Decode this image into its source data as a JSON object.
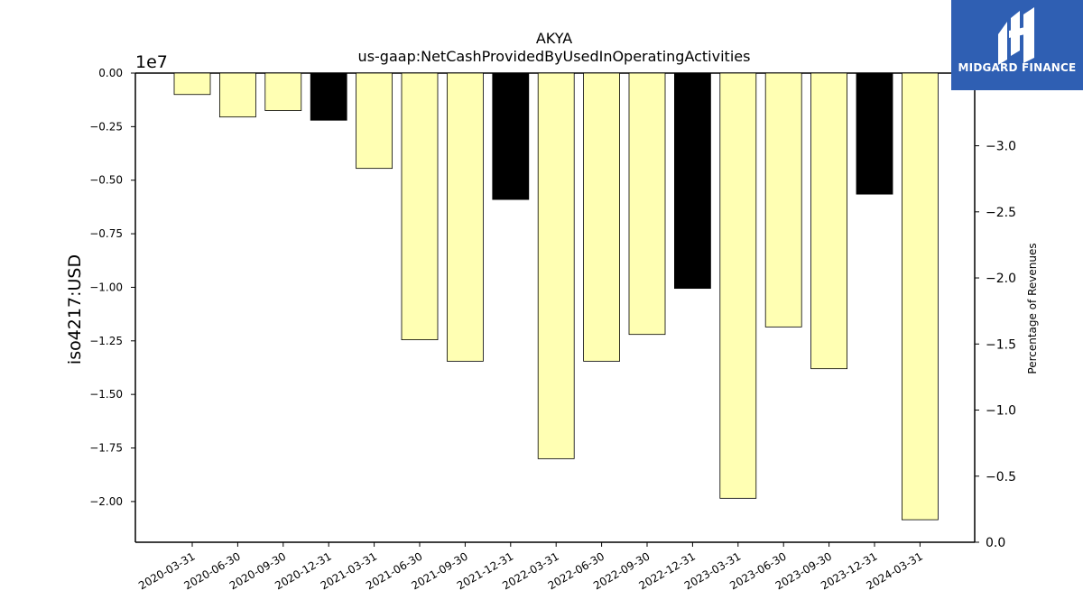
{
  "chart_data": {
    "type": "bar",
    "title": "AKYA",
    "subtitle": "us-gaap:NetCashProvidedByUsedInOperatingActivities",
    "ylabel": "iso4217:USD",
    "y_offset_label": "1e7",
    "y2label": "Percentage of Revenues",
    "ylim": [
      -2.19,
      0
    ],
    "y2lim": [
      0,
      -3.55
    ],
    "yticks": [
      "0.00",
      "−0.25",
      "−0.50",
      "−0.75",
      "−1.00",
      "−1.25",
      "−1.50",
      "−1.75",
      "−2.00"
    ],
    "ytick_values": [
      0,
      -0.25,
      -0.5,
      -0.75,
      -1.0,
      -1.25,
      -1.5,
      -1.75,
      -2.0
    ],
    "y2ticks": [
      "0.0",
      "−0.5",
      "−1.0",
      "−1.5",
      "−2.0",
      "−2.5",
      "−3.0"
    ],
    "y2tick_values": [
      0,
      -0.5,
      -1.0,
      -1.5,
      -2.0,
      -2.5,
      -3.0
    ],
    "categories": [
      "2020-03-31",
      "2020-06-30",
      "2020-09-30",
      "2020-12-31",
      "2021-03-31",
      "2021-06-30",
      "2021-09-30",
      "2021-12-31",
      "2022-03-31",
      "2022-06-30",
      "2022-09-30",
      "2022-12-31",
      "2023-03-31",
      "2023-06-30",
      "2023-09-30",
      "2023-12-31",
      "2024-03-31"
    ],
    "values": [
      -0.1,
      -0.205,
      -0.175,
      -0.22,
      -0.445,
      -1.245,
      -1.345,
      -0.59,
      -1.8,
      -1.345,
      -1.22,
      -1.005,
      -1.985,
      -1.185,
      -1.38,
      -0.565,
      -2.085
    ],
    "unit_multiplier": 10000000,
    "bar_colors": [
      "#ffffb3",
      "#ffffb3",
      "#ffffb3",
      "#000000",
      "#ffffb3",
      "#ffffb3",
      "#ffffb3",
      "#000000",
      "#ffffb3",
      "#ffffb3",
      "#ffffb3",
      "#000000",
      "#ffffb3",
      "#ffffb3",
      "#ffffb3",
      "#000000",
      "#ffffb3"
    ],
    "grid": false
  },
  "logo": {
    "text": "MIDGARD FINANCE",
    "color": "#2f5fb3"
  }
}
